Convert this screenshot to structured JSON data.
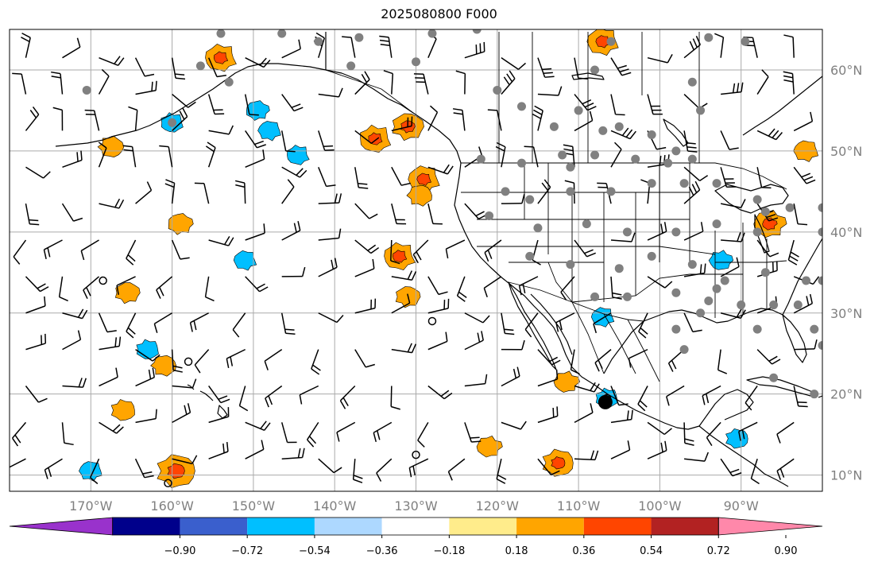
{
  "title": "2025080800 F000",
  "map": {
    "lon_range": [
      -180,
      -80
    ],
    "lat_range": [
      8,
      65
    ],
    "lat_ticks": [
      {
        "value": 10,
        "label": "10°N"
      },
      {
        "value": 20,
        "label": "20°N"
      },
      {
        "value": 30,
        "label": "30°N"
      },
      {
        "value": 40,
        "label": "40°N"
      },
      {
        "value": 50,
        "label": "50°N"
      },
      {
        "value": 60,
        "label": "60°N"
      }
    ],
    "lon_ticks": [
      {
        "value": -170,
        "label": "170°W"
      },
      {
        "value": -160,
        "label": "160°W"
      },
      {
        "value": -150,
        "label": "150°W"
      },
      {
        "value": -140,
        "label": "140°W"
      },
      {
        "value": -130,
        "label": "130°W"
      },
      {
        "value": -120,
        "label": "120°W"
      },
      {
        "value": -110,
        "label": "110°W"
      },
      {
        "value": -100,
        "label": "100°W"
      },
      {
        "value": -90,
        "label": "90°W"
      }
    ],
    "grid": true,
    "coastline_color": "#000000",
    "grid_color": "#aaaaaa"
  },
  "colorbar": {
    "orientation": "horizontal",
    "extend": "both",
    "bins": [
      {
        "color": "#9932cc"
      },
      {
        "color": "#00008b"
      },
      {
        "color": "#3a5fcd"
      },
      {
        "color": "#00bfff"
      },
      {
        "color": "#add8ff"
      },
      {
        "color": "#ffffff"
      },
      {
        "color": "#ffec8b"
      },
      {
        "color": "#ffa500"
      },
      {
        "color": "#ff4500"
      },
      {
        "color": "#b22222"
      },
      {
        "color": "#ff88aa"
      }
    ],
    "tick_labels": [
      "−0.90",
      "−0.72",
      "−0.54",
      "−0.36",
      "−0.18",
      "0.18",
      "0.36",
      "0.54",
      "0.72",
      "0.90"
    ]
  },
  "colors": {
    "positive_orange": "#ffa500",
    "positive_red": "#ff4500",
    "negative_blue": "#00bfff",
    "station_dot": "#808080",
    "barb": "#000000"
  },
  "features": {
    "positive_areas": [
      {
        "lon": -154,
        "lat": 61.5,
        "level": 2
      },
      {
        "lon": -167.5,
        "lat": 50.5,
        "level": 1
      },
      {
        "lon": -135,
        "lat": 51.5,
        "level": 2
      },
      {
        "lon": -131,
        "lat": 53,
        "level": 2
      },
      {
        "lon": -129,
        "lat": 46.5,
        "level": 2
      },
      {
        "lon": -129.5,
        "lat": 44.5,
        "level": 1
      },
      {
        "lon": -159,
        "lat": 41,
        "level": 1
      },
      {
        "lon": -132,
        "lat": 37,
        "level": 2
      },
      {
        "lon": -131,
        "lat": 32,
        "level": 1
      },
      {
        "lon": -165.5,
        "lat": 32.5,
        "level": 1
      },
      {
        "lon": -161,
        "lat": 23.5,
        "level": 1
      },
      {
        "lon": -166,
        "lat": 18,
        "level": 1
      },
      {
        "lon": -159.5,
        "lat": 10.5,
        "level": 3
      },
      {
        "lon": -111.5,
        "lat": 21.5,
        "level": 1
      },
      {
        "lon": -112.5,
        "lat": 11.5,
        "level": 2
      },
      {
        "lon": -86.5,
        "lat": 41,
        "level": 2
      },
      {
        "lon": -107,
        "lat": 63.5,
        "level": 2
      },
      {
        "lon": -82,
        "lat": 50,
        "level": 1
      },
      {
        "lon": -121,
        "lat": 13.5,
        "level": 1
      }
    ],
    "negative_areas": [
      {
        "lon": -148,
        "lat": 52.5,
        "level": 1
      },
      {
        "lon": -144.5,
        "lat": 49.5,
        "level": 1
      },
      {
        "lon": -160,
        "lat": 53.5,
        "level": 1
      },
      {
        "lon": -149.5,
        "lat": 55,
        "level": 1
      },
      {
        "lon": -106.5,
        "lat": 19.5,
        "level": 1
      },
      {
        "lon": -92.5,
        "lat": 36.5,
        "level": 1
      },
      {
        "lon": -163,
        "lat": 25.5,
        "level": 1
      },
      {
        "lon": -170,
        "lat": 10.5,
        "level": 1
      },
      {
        "lon": -90.5,
        "lat": 14.5,
        "level": 1
      },
      {
        "lon": -107,
        "lat": 29.5,
        "level": 1
      },
      {
        "lon": -151,
        "lat": 36.5,
        "level": 1
      }
    ],
    "station_dots": [
      [
        -154,
        64.5
      ],
      [
        -146.5,
        64.5
      ],
      [
        -142,
        63.5
      ],
      [
        -137,
        64
      ],
      [
        -128,
        64.5
      ],
      [
        -122.5,
        65
      ],
      [
        -106,
        63.5
      ],
      [
        -94,
        64
      ],
      [
        -89.5,
        63.5
      ],
      [
        -170.5,
        57.5
      ],
      [
        -156.5,
        60.5
      ],
      [
        -153,
        58.5
      ],
      [
        -138,
        60.5
      ],
      [
        -130,
        61
      ],
      [
        -120,
        57.5
      ],
      [
        -108,
        60
      ],
      [
        -96,
        58.5
      ],
      [
        -160,
        53.5
      ],
      [
        -117,
        55.5
      ],
      [
        -110,
        55
      ],
      [
        -113,
        53
      ],
      [
        -107,
        52.5
      ],
      [
        -105,
        53
      ],
      [
        -101,
        52
      ],
      [
        -95,
        55
      ],
      [
        -98,
        50
      ],
      [
        -108,
        49.5
      ],
      [
        -112,
        49.5
      ],
      [
        -122,
        49
      ],
      [
        -117,
        48.5
      ],
      [
        -111,
        48
      ],
      [
        -103,
        49
      ],
      [
        -99,
        48.5
      ],
      [
        -96,
        49
      ],
      [
        -119,
        45
      ],
      [
        -116,
        44
      ],
      [
        -111,
        45
      ],
      [
        -106,
        45
      ],
      [
        -101,
        46
      ],
      [
        -97,
        46
      ],
      [
        -93,
        46
      ],
      [
        -88,
        44
      ],
      [
        -84,
        43
      ],
      [
        -88,
        40
      ],
      [
        -121,
        42
      ],
      [
        -115,
        40.5
      ],
      [
        -109,
        41
      ],
      [
        -104,
        40
      ],
      [
        -98,
        40
      ],
      [
        -93,
        41
      ],
      [
        -87,
        42.5
      ],
      [
        -80,
        43
      ],
      [
        -80,
        40
      ],
      [
        -116,
        37
      ],
      [
        -111,
        36
      ],
      [
        -105,
        35.5
      ],
      [
        -101,
        37
      ],
      [
        -96,
        36
      ],
      [
        -92,
        34
      ],
      [
        -87,
        35
      ],
      [
        -82,
        34
      ],
      [
        -80,
        34
      ],
      [
        -108,
        32
      ],
      [
        -104,
        32
      ],
      [
        -98,
        32.5
      ],
      [
        -94,
        31.5
      ],
      [
        -90,
        31
      ],
      [
        -86,
        31
      ],
      [
        -83,
        31
      ],
      [
        -81,
        28
      ],
      [
        -80,
        26
      ],
      [
        -98,
        28
      ],
      [
        -97,
        25.5
      ],
      [
        -86,
        22
      ],
      [
        -81,
        20
      ],
      [
        -88,
        28
      ],
      [
        -95,
        30
      ],
      [
        -93,
        33
      ]
    ],
    "calm_circles": [
      [
        -168.5,
        34
      ],
      [
        -128,
        29
      ],
      [
        -158,
        24
      ],
      [
        -160.5,
        9
      ],
      [
        -130,
        12.5
      ],
      [
        -106.5,
        19.5
      ]
    ],
    "large_dot": {
      "lon": -106.7,
      "lat": 19
    }
  }
}
